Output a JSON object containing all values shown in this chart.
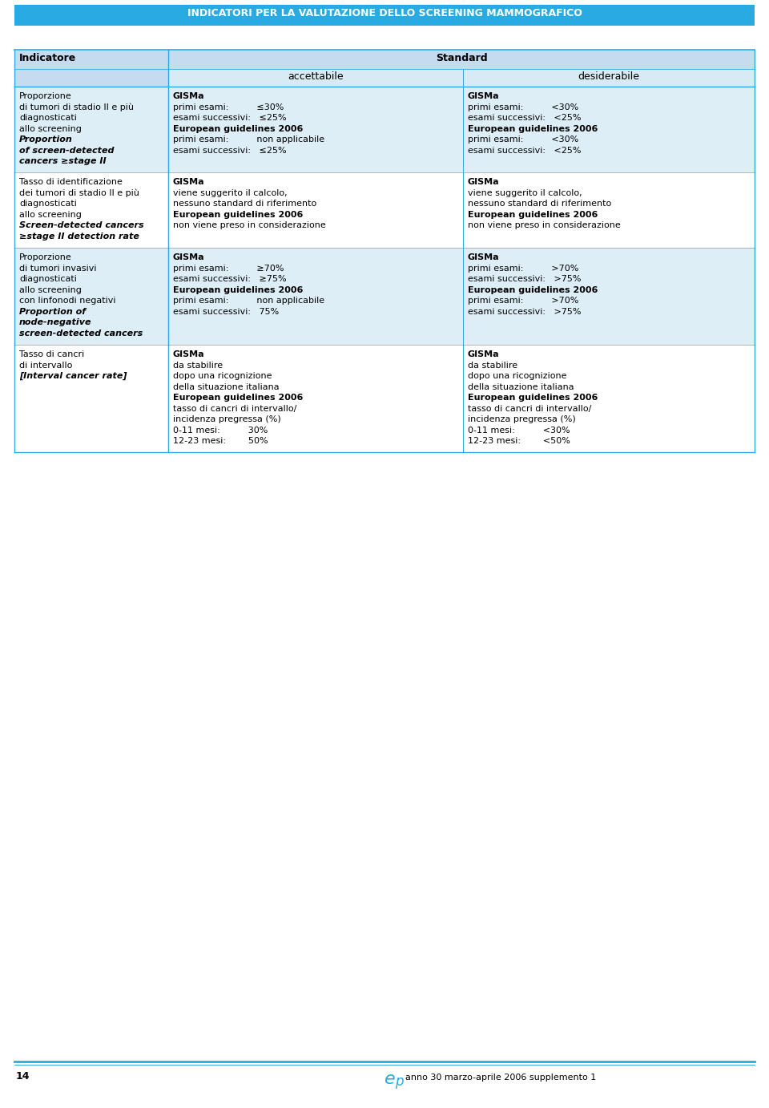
{
  "title": "INDICATORI PER LA VALUTAZIONE DELLO SCREENING MAMMOGRAFICO",
  "title_bg": "#29ABE2",
  "title_color": "white",
  "header_bg": "#C5DCF0",
  "header_bg2": "#D8EBF5",
  "row_bg_odd": "#DDEEF7",
  "row_bg_even": "#FFFFFF",
  "border_color": "#29ABE2",
  "divider_color": "#29ABE2",
  "text_color": "#000000",
  "footer_line_color": "#29ABE2",
  "footer_text": "anno 30 marzo-aprile 2006 supplemento 1",
  "footer_number": "14",
  "fig_w": 9.6,
  "fig_h": 13.82,
  "dpi": 100,
  "rows": [
    {
      "indicator_lines": [
        {
          "text": "Proporzione",
          "bold": false,
          "italic": false
        },
        {
          "text": "di tumori di stadio II e più",
          "bold": false,
          "italic": false
        },
        {
          "text": "diagnosticati",
          "bold": false,
          "italic": false
        },
        {
          "text": "allo screening",
          "bold": false,
          "italic": false
        },
        {
          "text": "Proportion",
          "bold": true,
          "italic": true
        },
        {
          "text": "of screen-detected",
          "bold": true,
          "italic": true
        },
        {
          "text": "cancers ≥stage II",
          "bold": true,
          "italic": true
        }
      ],
      "accettabile_lines": [
        {
          "text": "GISMa",
          "bold": true,
          "italic": false
        },
        {
          "text": "primi esami:          ≤30%",
          "bold": false,
          "italic": false
        },
        {
          "text": "esami successivi:   ≤25%",
          "bold": false,
          "italic": false
        },
        {
          "text": "European guidelines 2006",
          "bold": true,
          "italic": false
        },
        {
          "text": "primi esami:          non applicabile",
          "bold": false,
          "italic": false
        },
        {
          "text": "esami successivi:   ≤25%",
          "bold": false,
          "italic": false
        }
      ],
      "desiderabile_lines": [
        {
          "text": "GISMa",
          "bold": true,
          "italic": false
        },
        {
          "text": "primi esami:          <30%",
          "bold": false,
          "italic": false
        },
        {
          "text": "esami successivi:   <25%",
          "bold": false,
          "italic": false
        },
        {
          "text": "European guidelines 2006",
          "bold": true,
          "italic": false
        },
        {
          "text": "primi esami:          <30%",
          "bold": false,
          "italic": false
        },
        {
          "text": "esami successivi:   <25%",
          "bold": false,
          "italic": false
        }
      ]
    },
    {
      "indicator_lines": [
        {
          "text": "Tasso di identificazione",
          "bold": false,
          "italic": false
        },
        {
          "text": "dei tumori di stadio II e più",
          "bold": false,
          "italic": false
        },
        {
          "text": "diagnosticati",
          "bold": false,
          "italic": false
        },
        {
          "text": "allo screening",
          "bold": false,
          "italic": false
        },
        {
          "text": "Screen-detected cancers",
          "bold": true,
          "italic": true
        },
        {
          "text": "≥stage II detection rate",
          "bold": true,
          "italic": true
        }
      ],
      "accettabile_lines": [
        {
          "text": "GISMa",
          "bold": true,
          "italic": false
        },
        {
          "text": "viene suggerito il calcolo,",
          "bold": false,
          "italic": false
        },
        {
          "text": "nessuno standard di riferimento",
          "bold": false,
          "italic": false
        },
        {
          "text": "European guidelines 2006",
          "bold": true,
          "italic": false
        },
        {
          "text": "non viene preso in considerazione",
          "bold": false,
          "italic": false
        }
      ],
      "desiderabile_lines": [
        {
          "text": "GISMa",
          "bold": true,
          "italic": false
        },
        {
          "text": "viene suggerito il calcolo,",
          "bold": false,
          "italic": false
        },
        {
          "text": "nessuno standard di riferimento",
          "bold": false,
          "italic": false
        },
        {
          "text": "European guidelines 2006",
          "bold": true,
          "italic": false
        },
        {
          "text": "non viene preso in considerazione",
          "bold": false,
          "italic": false
        }
      ]
    },
    {
      "indicator_lines": [
        {
          "text": "Proporzione",
          "bold": false,
          "italic": false
        },
        {
          "text": "di tumori invasivi",
          "bold": false,
          "italic": false
        },
        {
          "text": "diagnosticati",
          "bold": false,
          "italic": false
        },
        {
          "text": "allo screening",
          "bold": false,
          "italic": false
        },
        {
          "text": "con linfonodi negativi",
          "bold": false,
          "italic": false
        },
        {
          "text": "Proportion of",
          "bold": true,
          "italic": true
        },
        {
          "text": "node-negative",
          "bold": true,
          "italic": true
        },
        {
          "text": "screen-detected cancers",
          "bold": true,
          "italic": true
        }
      ],
      "accettabile_lines": [
        {
          "text": "GISMa",
          "bold": true,
          "italic": false
        },
        {
          "text": "primi esami:          ≥70%",
          "bold": false,
          "italic": false
        },
        {
          "text": "esami successivi:   ≥75%",
          "bold": false,
          "italic": false
        },
        {
          "text": "European guidelines 2006",
          "bold": true,
          "italic": false
        },
        {
          "text": "primi esami:          non applicabile",
          "bold": false,
          "italic": false
        },
        {
          "text": "esami successivi:   75%",
          "bold": false,
          "italic": false
        }
      ],
      "desiderabile_lines": [
        {
          "text": "GISMa",
          "bold": true,
          "italic": false
        },
        {
          "text": "primi esami:          >70%",
          "bold": false,
          "italic": false
        },
        {
          "text": "esami successivi:   >75%",
          "bold": false,
          "italic": false
        },
        {
          "text": "European guidelines 2006",
          "bold": true,
          "italic": false
        },
        {
          "text": "primi esami:          >70%",
          "bold": false,
          "italic": false
        },
        {
          "text": "esami successivi:   >75%",
          "bold": false,
          "italic": false
        }
      ]
    },
    {
      "indicator_lines": [
        {
          "text": "Tasso di cancri",
          "bold": false,
          "italic": false
        },
        {
          "text": "di intervallo",
          "bold": false,
          "italic": false
        },
        {
          "text": "[Interval cancer rate]",
          "bold": true,
          "italic": true
        }
      ],
      "accettabile_lines": [
        {
          "text": "GISMa",
          "bold": true,
          "italic": false
        },
        {
          "text": "da stabilire",
          "bold": false,
          "italic": false
        },
        {
          "text": "dopo una ricognizione",
          "bold": false,
          "italic": false
        },
        {
          "text": "della situazione italiana",
          "bold": false,
          "italic": false
        },
        {
          "text": "European guidelines 2006",
          "bold": true,
          "italic": false
        },
        {
          "text": "tasso di cancri di intervallo/",
          "bold": false,
          "italic": false
        },
        {
          "text": "incidenza pregressa (%)",
          "bold": false,
          "italic": false
        },
        {
          "text": "0-11 mesi:          30%",
          "bold": false,
          "italic": false
        },
        {
          "text": "12-23 mesi:        50%",
          "bold": false,
          "italic": false
        }
      ],
      "desiderabile_lines": [
        {
          "text": "GISMa",
          "bold": true,
          "italic": false
        },
        {
          "text": "da stabilire",
          "bold": false,
          "italic": false
        },
        {
          "text": "dopo una ricognizione",
          "bold": false,
          "italic": false
        },
        {
          "text": "della situazione italiana",
          "bold": false,
          "italic": false
        },
        {
          "text": "European guidelines 2006",
          "bold": true,
          "italic": false
        },
        {
          "text": "tasso di cancri di intervallo/",
          "bold": false,
          "italic": false
        },
        {
          "text": "incidenza pregressa (%)",
          "bold": false,
          "italic": false
        },
        {
          "text": "0-11 mesi:          <30%",
          "bold": false,
          "italic": false
        },
        {
          "text": "12-23 mesi:        <50%",
          "bold": false,
          "italic": false
        }
      ]
    }
  ]
}
